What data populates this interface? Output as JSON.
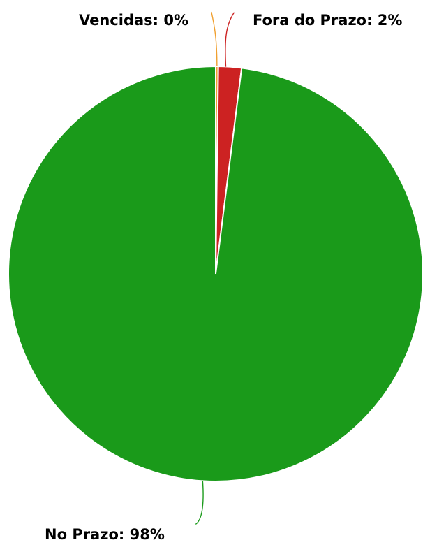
{
  "chart_data": {
    "type": "pie",
    "title": "",
    "slices": [
      {
        "label": "Vencidas",
        "value": 0.2,
        "display": "Vencidas: 0%",
        "color": "#f0a030"
      },
      {
        "label": "Fora do Prazo",
        "value": 1.8,
        "display": "Fora do Prazo: 2%",
        "color": "#cc2222"
      },
      {
        "label": "No Prazo",
        "value": 98,
        "display": "No Prazo: 98%",
        "color": "#1a9a1a"
      }
    ],
    "legend": "none",
    "start_angle": "top",
    "direction": "clockwise"
  }
}
